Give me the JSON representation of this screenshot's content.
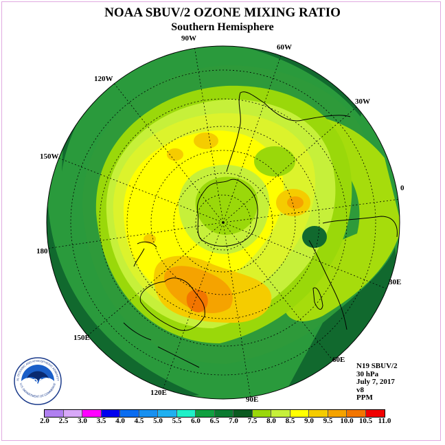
{
  "header": {
    "title": "NOAA SBUV/2 OZONE MIXING RATIO",
    "subtitle": "Southern Hemisphere"
  },
  "map": {
    "projection": "polar stereographic, south pole centered",
    "longitude_labels": [
      {
        "text": "90W",
        "pos": "top"
      },
      {
        "text": "60W",
        "pos": "upper-right"
      },
      {
        "text": "30W",
        "pos": "right-upper"
      },
      {
        "text": "0",
        "pos": "right"
      },
      {
        "text": "30E",
        "pos": "right-lower"
      },
      {
        "text": "60E",
        "pos": "lower-right"
      },
      {
        "text": "90E",
        "pos": "bottom"
      },
      {
        "text": "120E",
        "pos": "lower-left"
      },
      {
        "text": "150E",
        "pos": "left-lower"
      },
      {
        "text": "180",
        "pos": "left"
      },
      {
        "text": "150W",
        "pos": "left-upper"
      },
      {
        "text": "120W",
        "pos": "upper-left"
      }
    ],
    "colors": {
      "outer_ring": "#1a8a3c",
      "dark_green": "#11692e",
      "green": "#2e9a3a",
      "lime": "#9ad80a",
      "light_lime": "#c6f03a",
      "yellow_green": "#dcf32c",
      "yellow": "#ffff00",
      "gold": "#f5cc00",
      "orange": "#f5a300",
      "dark_orange": "#f27500"
    }
  },
  "info": {
    "satellite": "N19 SBUV/2",
    "level": "30 hPa",
    "date": "July 7, 2017",
    "version": "v8",
    "units": "PPM"
  },
  "colorbar": {
    "colors": [
      "#b080f0",
      "#d8a8f8",
      "#ff00ff",
      "#e000e0",
      "#0000ee",
      "#0a6cf0",
      "#1890f0",
      "#20b0f0",
      "#20d8f0",
      "#20f0c8",
      "#10a040",
      "#0a7a30",
      "#0a5a20",
      "#7ee000",
      "#b0f000",
      "#e0f800",
      "#ffff00",
      "#f8d800",
      "#f5a800",
      "#f57000",
      "#f03000",
      "#e00000",
      "#c05030",
      "#806050"
    ],
    "tick_labels": [
      "2.0",
      "2.5",
      "3.0",
      "3.5",
      "4.0",
      "4.5",
      "5.0",
      "5.5",
      "6.0",
      "6.5",
      "7.0",
      "7.5",
      "8.0",
      "8.5",
      "9.0",
      "9.5",
      "10.0",
      "10.5",
      "11.0"
    ]
  },
  "logo": {
    "text": "NOAA",
    "ring_text": "NATIONAL OCEANIC AND ATMOSPHERIC ADMINISTRATION",
    "ring_text_bottom": "U.S. DEPARTMENT OF COMMERCE"
  }
}
